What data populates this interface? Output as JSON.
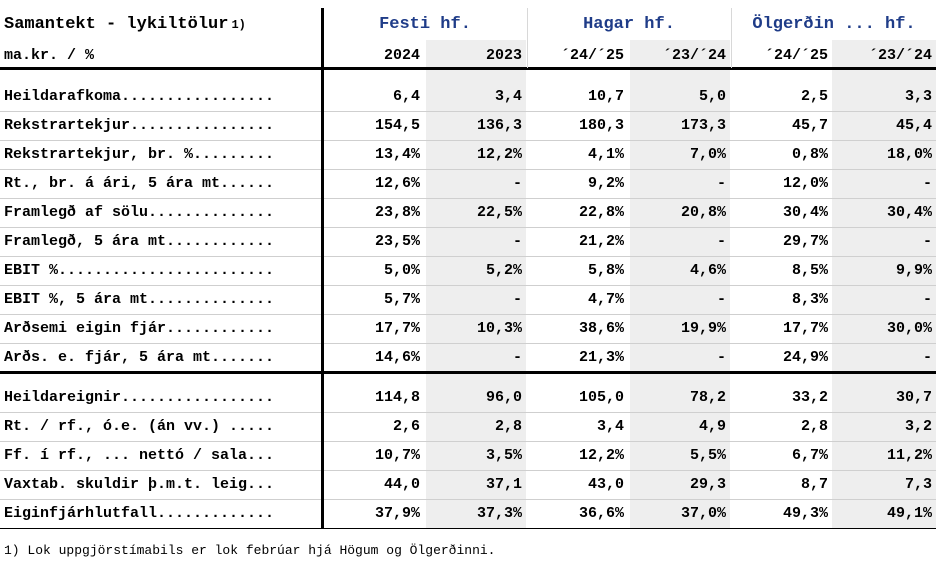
{
  "header": {
    "title": "Samantekt - lykiltölur",
    "title_note": "1)",
    "units": "ma.kr. / %",
    "companies": [
      "Festi hf.",
      "Hagar hf.",
      "Ölgerðin ... hf."
    ],
    "periods": [
      "2024",
      "2023",
      "´24/´25",
      "´23/´24",
      "´24/´25",
      "´23/´24"
    ]
  },
  "sections": [
    {
      "rows": [
        {
          "label": "Heildarafkoma.................",
          "values": [
            "6,4",
            "3,4",
            "10,7",
            "5,0",
            "2,5",
            "3,3"
          ]
        },
        {
          "label": "Rekstrartekjur................",
          "values": [
            "154,5",
            "136,3",
            "180,3",
            "173,3",
            "45,7",
            "45,4"
          ]
        },
        {
          "label": "Rekstrartekjur, br. %.........",
          "values": [
            "13,4%",
            "12,2%",
            "4,1%",
            "7,0%",
            "0,8%",
            "18,0%"
          ]
        },
        {
          "label": "Rt., br. á ári, 5 ára mt......",
          "values": [
            "12,6%",
            "-",
            "9,2%",
            "-",
            "12,0%",
            "-"
          ]
        },
        {
          "label": "Framlegð af sölu..............",
          "values": [
            "23,8%",
            "22,5%",
            "22,8%",
            "20,8%",
            "30,4%",
            "30,4%"
          ]
        },
        {
          "label": "Framlegð, 5 ára mt............",
          "values": [
            "23,5%",
            "-",
            "21,2%",
            "-",
            "29,7%",
            "-"
          ]
        },
        {
          "label": "EBIT %........................",
          "values": [
            "5,0%",
            "5,2%",
            "5,8%",
            "4,6%",
            "8,5%",
            "9,9%"
          ]
        },
        {
          "label": "EBIT %, 5 ára mt..............",
          "values": [
            "5,7%",
            "-",
            "4,7%",
            "-",
            "8,3%",
            "-"
          ]
        },
        {
          "label": "Arðsemi eigin fjár............",
          "values": [
            "17,7%",
            "10,3%",
            "38,6%",
            "19,9%",
            "17,7%",
            "30,0%"
          ]
        },
        {
          "label": "Arðs. e. fjár, 5 ára mt.......",
          "values": [
            "14,6%",
            "-",
            "21,3%",
            "-",
            "24,9%",
            "-"
          ]
        }
      ]
    },
    {
      "rows": [
        {
          "label": "Heildareignir.................",
          "values": [
            "114,8",
            "96,0",
            "105,0",
            "78,2",
            "33,2",
            "30,7"
          ]
        },
        {
          "label": "Rt. / rf., ó.e. (án vv.) .....",
          "values": [
            "2,6",
            "2,8",
            "3,4",
            "4,9",
            "2,8",
            "3,2"
          ]
        },
        {
          "label": "Ff. í rf., ... nettó / sala...",
          "values": [
            "10,7%",
            "3,5%",
            "12,2%",
            "5,5%",
            "6,7%",
            "11,2%"
          ]
        },
        {
          "label": "Vaxtab. skuldir þ.m.t. leig...",
          "values": [
            "44,0",
            "37,1",
            "43,0",
            "29,3",
            "8,7",
            "7,3"
          ]
        },
        {
          "label": "Eiginfjárhlutfall.............",
          "values": [
            "37,9%",
            "37,3%",
            "36,6%",
            "37,0%",
            "49,3%",
            "49,1%"
          ]
        }
      ]
    }
  ],
  "footnote": "1) Lok uppgjörstímabils er lok febrúar hjá Högum og Ölgerðinni.",
  "colors": {
    "company_header": "#1f3c88",
    "shade": "#eeeeee"
  }
}
